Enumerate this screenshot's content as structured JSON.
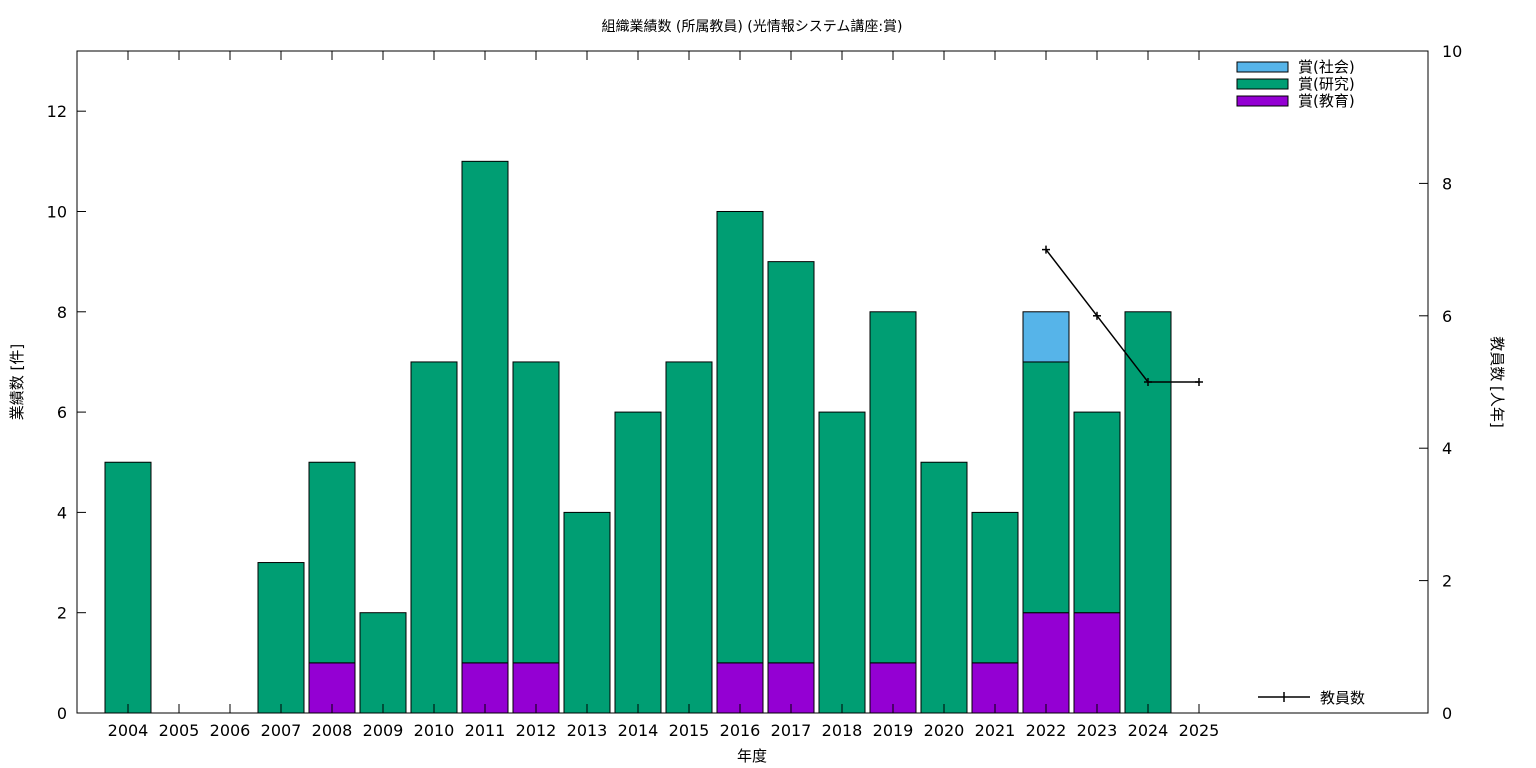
{
  "chart_data": {
    "type": "bar",
    "title": "組織業績数 (所属教員) (光情報システム講座:賞)",
    "xlabel": "年度",
    "ylabel": "業績数 [件]",
    "y2label": "教員数 [人年]",
    "ylim": [
      0,
      13.2
    ],
    "y2lim": [
      0,
      10
    ],
    "yticks": [
      0,
      2,
      4,
      6,
      8,
      10,
      12
    ],
    "y2ticks": [
      0,
      2,
      4,
      6,
      8,
      10
    ],
    "grid": false,
    "legend_position": "top-right",
    "categories": [
      "2004",
      "2005",
      "2006",
      "2007",
      "2008",
      "2009",
      "2010",
      "2011",
      "2012",
      "2013",
      "2014",
      "2015",
      "2016",
      "2017",
      "2018",
      "2019",
      "2020",
      "2021",
      "2022",
      "2023",
      "2024",
      "2025"
    ],
    "stacked": true,
    "series": [
      {
        "name": "賞(教育)",
        "color": "#9400d3",
        "values": [
          0,
          0,
          0,
          0,
          1,
          0,
          0,
          1,
          1,
          0,
          0,
          0,
          1,
          1,
          0,
          1,
          0,
          1,
          2,
          2,
          0,
          0
        ]
      },
      {
        "name": "賞(研究)",
        "color": "#009e73",
        "values": [
          5,
          0,
          0,
          3,
          4,
          2,
          7,
          10,
          6,
          4,
          6,
          7,
          9,
          8,
          6,
          7,
          5,
          3,
          5,
          4,
          8,
          0
        ]
      },
      {
        "name": "賞(社会)",
        "color": "#56b4e9",
        "values": [
          0,
          0,
          0,
          0,
          0,
          0,
          0,
          0,
          0,
          0,
          0,
          0,
          0,
          0,
          0,
          0,
          0,
          0,
          1,
          0,
          0,
          0
        ]
      }
    ],
    "line_series": {
      "name": "教員数",
      "axis": "y2",
      "color": "#000000",
      "points": [
        {
          "x": "2022",
          "y": 7
        },
        {
          "x": "2023",
          "y": 6
        },
        {
          "x": "2024",
          "y": 5
        },
        {
          "x": "2025",
          "y": 5
        }
      ]
    }
  }
}
